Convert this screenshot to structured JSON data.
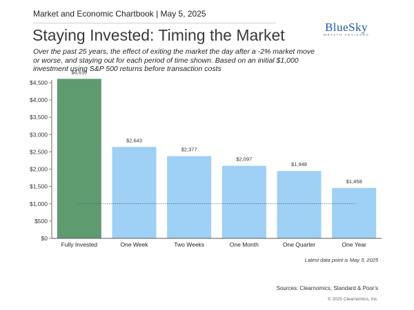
{
  "header": {
    "kicker": "Market and Economic Chartbook | May 5, 2025",
    "title": "Staying Invested: Timing the Market",
    "subtitle": "Over the past 25 years, the effect of exiting the market the day after a -2% market move or worse, and staying out for each period of time shown. Based on an initial $1,000 investment using S&P 500 returns before transaction costs"
  },
  "logo": {
    "name": "BlueSky",
    "tagline": "WEALTH ADVISORS"
  },
  "chart_data": {
    "type": "bar",
    "categories": [
      "Fully Invested",
      "One Week",
      "Two Weeks",
      "One Month",
      "One Quarter",
      "One Year"
    ],
    "values": [
      4610,
      2643,
      2377,
      2097,
      1948,
      1458
    ],
    "data_labels": [
      "$4,610",
      "$2,643",
      "$2,377",
      "$2,097",
      "$1,948",
      "$1,458"
    ],
    "bar_colors": [
      "#5e9b6f",
      "#9fd0f5",
      "#9fd0f5",
      "#9fd0f5",
      "#9fd0f5",
      "#9fd0f5"
    ],
    "ylim": [
      0,
      4500
    ],
    "yticks": [
      0,
      500,
      1000,
      1500,
      2000,
      2500,
      3000,
      3500,
      4000,
      4500
    ],
    "ytick_labels": [
      "$0",
      "$500",
      "$1,000",
      "$1,500",
      "$2,000",
      "$2,500",
      "$3,000",
      "$3,500",
      "$4,000",
      "$4,500"
    ],
    "reference_line": {
      "value": 1000,
      "style": "dotted"
    },
    "grid": false,
    "legend": "none"
  },
  "footer": {
    "note": "Latest data point is May 3, 2025",
    "sources": "Sources: Clearnomics, Standard & Poor's",
    "copyright": "© 2025 Clearnomics, Inc."
  }
}
